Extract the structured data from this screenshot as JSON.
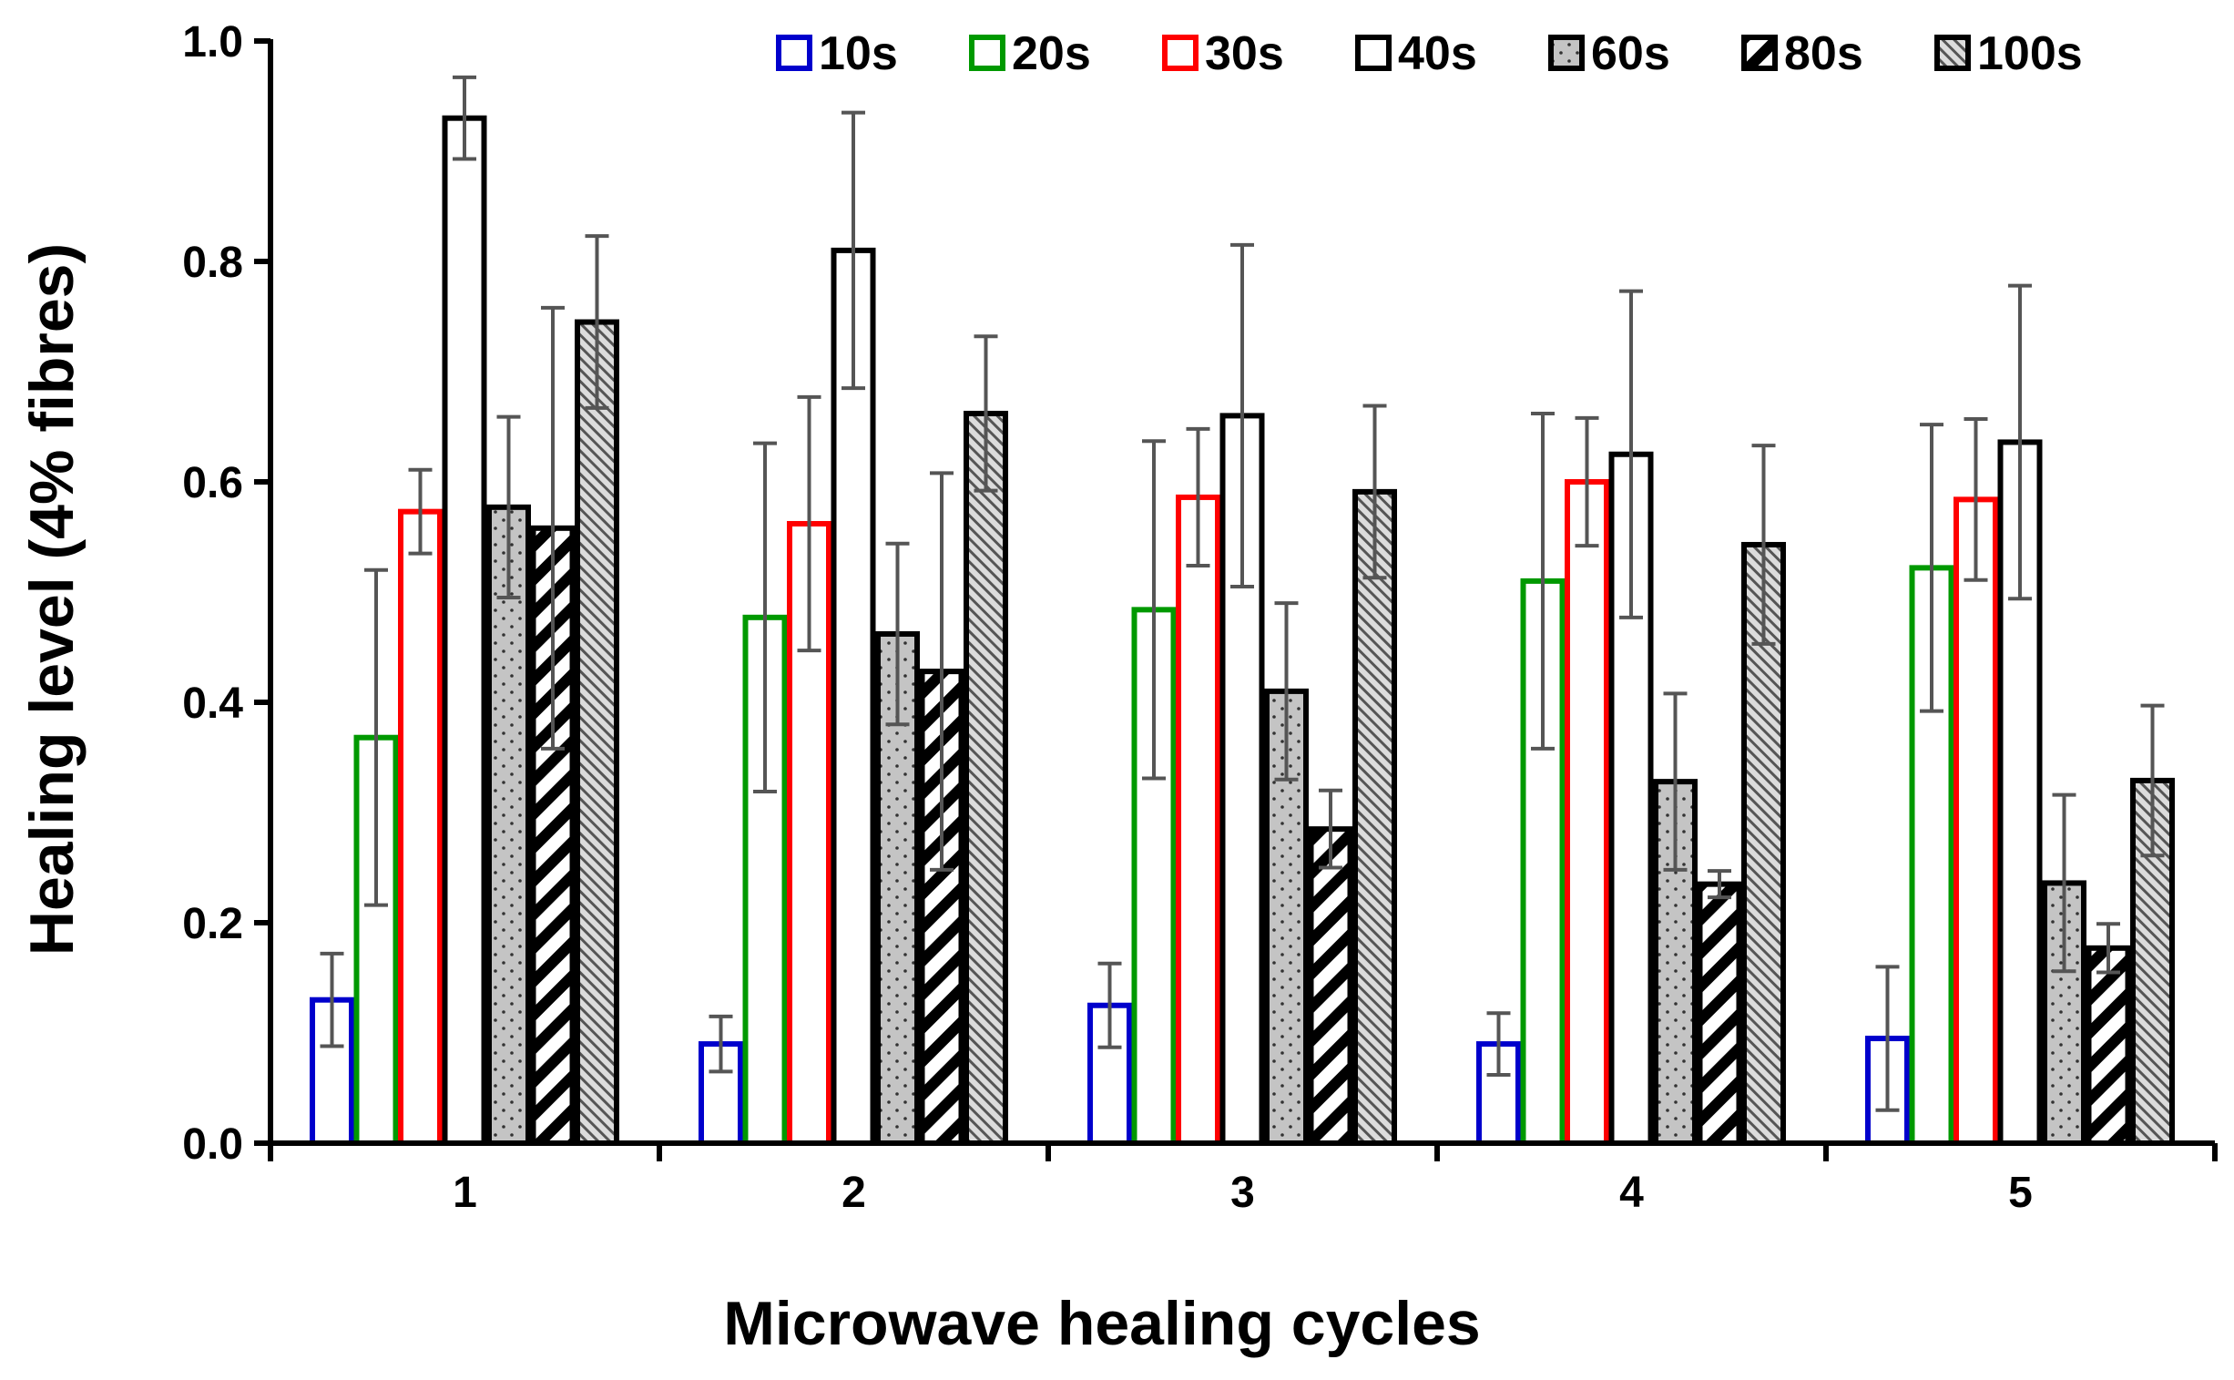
{
  "chart_data": {
    "type": "bar",
    "xlabel": "Microwave healing cycles",
    "ylabel": "Healing level (4% fibres)",
    "ylim": [
      0,
      1.0
    ],
    "yticks": [
      "0.0",
      "0.2",
      "0.4",
      "0.6",
      "0.8",
      "1.0"
    ],
    "categories": [
      "1",
      "2",
      "3",
      "4",
      "5"
    ],
    "legend_position": "top-right",
    "grid": false,
    "series": [
      {
        "name": "10s",
        "color": "#0000cc",
        "fill": "white",
        "values": [
          0.13,
          0.09,
          0.125,
          0.09,
          0.095
        ],
        "errors": [
          0.042,
          0.025,
          0.038,
          0.028,
          0.065
        ]
      },
      {
        "name": "20s",
        "color": "#009900",
        "fill": "white",
        "values": [
          0.368,
          0.477,
          0.484,
          0.51,
          0.522
        ],
        "errors": [
          0.152,
          0.158,
          0.153,
          0.152,
          0.13
        ]
      },
      {
        "name": "30s",
        "color": "#ff0000",
        "fill": "white",
        "values": [
          0.573,
          0.562,
          0.586,
          0.6,
          0.584
        ],
        "errors": [
          0.038,
          0.115,
          0.062,
          0.058,
          0.073
        ]
      },
      {
        "name": "40s",
        "color": "#000000",
        "fill": "white",
        "values": [
          0.93,
          0.81,
          0.66,
          0.625,
          0.636
        ],
        "errors": [
          0.037,
          0.125,
          0.155,
          0.148,
          0.142
        ]
      },
      {
        "name": "60s",
        "color": "#000000",
        "fill": "dotted",
        "values": [
          0.577,
          0.462,
          0.41,
          0.328,
          0.236
        ],
        "errors": [
          0.082,
          0.082,
          0.08,
          0.08,
          0.08
        ]
      },
      {
        "name": "80s",
        "color": "#000000",
        "fill": "diagonal",
        "values": [
          0.558,
          0.428,
          0.285,
          0.235,
          0.177
        ],
        "errors": [
          0.2,
          0.18,
          0.035,
          0.012,
          0.022
        ]
      },
      {
        "name": "100s",
        "color": "#000000",
        "fill": "hatch",
        "values": [
          0.745,
          0.662,
          0.591,
          0.543,
          0.329
        ],
        "errors": [
          0.078,
          0.07,
          0.078,
          0.09,
          0.068
        ]
      }
    ]
  }
}
